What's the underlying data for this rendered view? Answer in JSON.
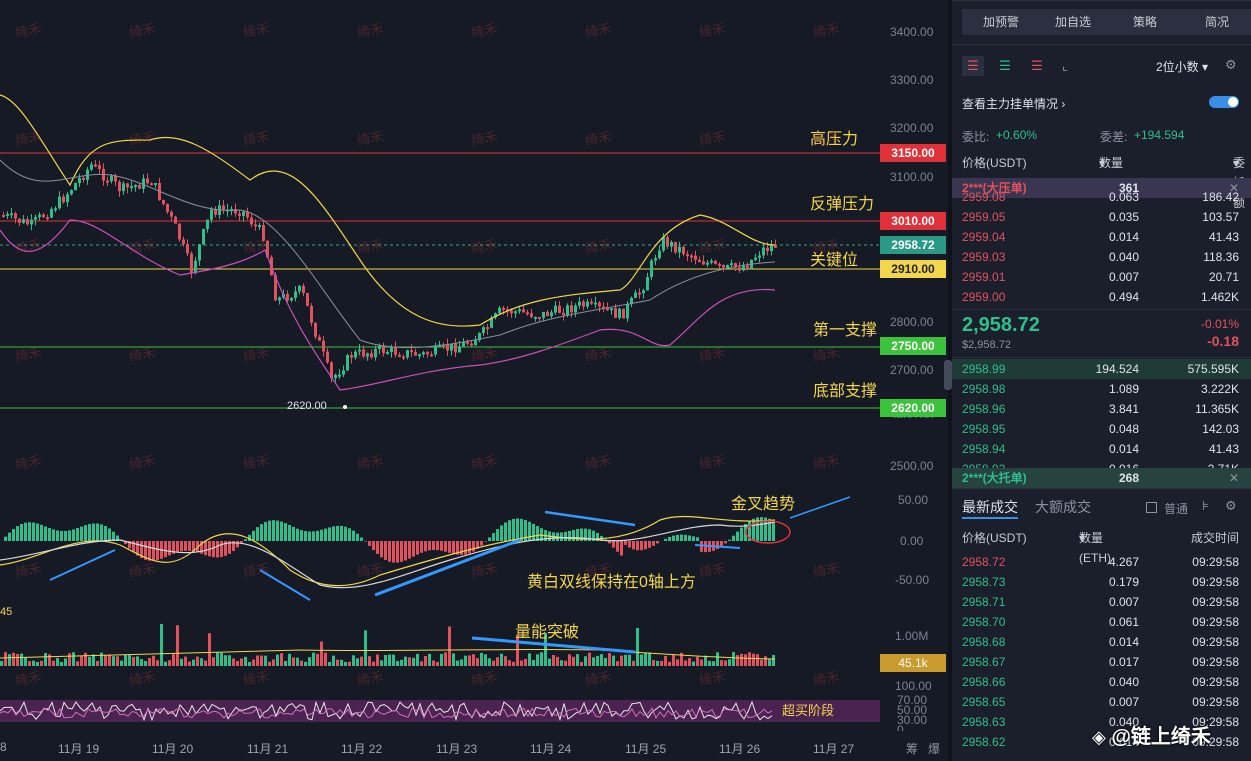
{
  "chart": {
    "price_axis": [
      "3400.00",
      "3300.00",
      "3200.00",
      "3100.00",
      "2800.00",
      "2700.00",
      "2500.00"
    ],
    "price_axis_partial": "2600.00",
    "macd_axis": [
      "50.00",
      "0.00",
      "-50.00"
    ],
    "volume_axis": [
      "1.00M"
    ],
    "rsi_axis": [
      "100.00",
      "70.00",
      "50.00",
      "30.00"
    ],
    "rsi_partial": "0",
    "dates": [
      "11月 19",
      "11月 20",
      "11月 21",
      "11月 22",
      "11月 23",
      "11月 24",
      "11月 25",
      "11月 26",
      "11月 27"
    ],
    "date_left_partial": "8",
    "price_tags": {
      "high_pressure": "3150.00",
      "rebound_pressure": "3010.00",
      "current": "2958.72",
      "key": "2910.00",
      "support1": "2750.00",
      "bottom": "2620.00"
    },
    "level_labels": {
      "high_pressure": "高压力",
      "rebound_pressure": "反弹压力",
      "key": "关键位",
      "support1": "第一支撑",
      "bottom": "底部支撑"
    },
    "low_marker": "2620.00",
    "annotations": {
      "golden_cross": "金叉趋势",
      "macd_note": "黄白双线保持在0轴上方",
      "volume_note": "量能突破",
      "overbought": "超买阶段"
    },
    "volume_tag": "45.1k",
    "left_number": "45",
    "bottom_icons": [
      "筹",
      "爆"
    ],
    "watermark": "绮禾",
    "colors": {
      "up": "#2fbf8a",
      "down": "#e0525e",
      "yellow": "#f2d64b",
      "high_line": "#e0303a",
      "support_line": "#3cc23c"
    }
  },
  "panel": {
    "buttons": [
      "加预警",
      "加自选",
      "策略",
      "简况"
    ],
    "decimal_select": "2位小数",
    "main_orders_link": "查看主力挂单情况",
    "ratio_label": "委比:",
    "ratio_value": "+0.60%",
    "diff_label": "委差:",
    "diff_value": "+194.594",
    "ob_headers": [
      "价格(USDT)",
      "数量 (ETH)",
      "委托额"
    ],
    "big_ask": {
      "label": "2***(大压单)",
      "value": "361"
    },
    "asks": [
      {
        "price": "2959.08",
        "qty": "0.063",
        "amt": "186.42"
      },
      {
        "price": "2959.05",
        "qty": "0.035",
        "amt": "103.57"
      },
      {
        "price": "2959.04",
        "qty": "0.014",
        "amt": "41.43"
      },
      {
        "price": "2959.03",
        "qty": "0.040",
        "amt": "118.36"
      },
      {
        "price": "2959.01",
        "qty": "0.007",
        "amt": "20.71"
      },
      {
        "price": "2959.00",
        "qty": "0.494",
        "amt": "1.462K"
      }
    ],
    "last_price": "2,958.72",
    "last_sub": "$2,958.72",
    "change_pct": "-0.01%",
    "change_abs": "-0.18",
    "bids": [
      {
        "price": "2958.99",
        "qty": "194.524",
        "amt": "575.595K"
      },
      {
        "price": "2958.98",
        "qty": "1.089",
        "amt": "3.222K"
      },
      {
        "price": "2958.96",
        "qty": "3.841",
        "amt": "11.365K"
      },
      {
        "price": "2958.95",
        "qty": "0.048",
        "amt": "142.03"
      },
      {
        "price": "2958.94",
        "qty": "0.014",
        "amt": "41.43"
      },
      {
        "price": "2958.93",
        "qty": "0.916",
        "amt": "2.71K"
      }
    ],
    "big_bid": {
      "label": "2***(大托单)",
      "value": "268"
    },
    "trade_tabs": [
      "最新成交",
      "大额成交"
    ],
    "normal_label": "普通",
    "trade_headers": [
      "价格(USDT)",
      "数量(ETH)",
      "成交时间"
    ],
    "trades": [
      {
        "price": "2958.72",
        "qty": "4.267",
        "time": "09:29:58",
        "side": "sell"
      },
      {
        "price": "2958.73",
        "qty": "0.179",
        "time": "09:29:58",
        "side": "buy"
      },
      {
        "price": "2958.71",
        "qty": "0.007",
        "time": "09:29:58",
        "side": "buy"
      },
      {
        "price": "2958.70",
        "qty": "0.061",
        "time": "09:29:58",
        "side": "buy"
      },
      {
        "price": "2958.68",
        "qty": "0.014",
        "time": "09:29:58",
        "side": "buy"
      },
      {
        "price": "2958.67",
        "qty": "0.017",
        "time": "09:29:58",
        "side": "buy"
      },
      {
        "price": "2958.66",
        "qty": "0.040",
        "time": "09:29:58",
        "side": "buy"
      },
      {
        "price": "2958.65",
        "qty": "0.007",
        "time": "09:29:58",
        "side": "buy"
      },
      {
        "price": "2958.63",
        "qty": "0.040",
        "time": "09:29:58",
        "side": "buy"
      },
      {
        "price": "2958.62",
        "qty": "0.014",
        "time": "09:29:58",
        "side": "buy"
      }
    ],
    "brand": "@链上绮禾"
  }
}
